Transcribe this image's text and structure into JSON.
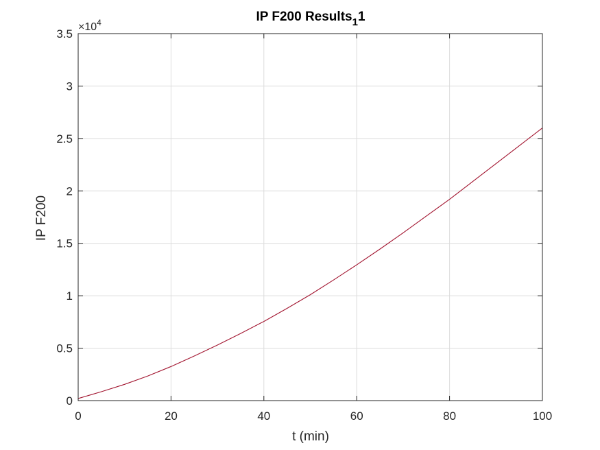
{
  "figure": {
    "title_main": "IP F200 Results",
    "title_subscript": "1",
    "title_suffix": "1"
  },
  "chart_data": {
    "type": "line",
    "title": "IP F200 Results_1 1",
    "xlabel": "t (min)",
    "ylabel": "IP F200",
    "xlim": [
      0,
      100
    ],
    "ylim": [
      0,
      35000
    ],
    "y_exponent_label": "×10",
    "y_exponent_power": "4",
    "grid": true,
    "legend": "none",
    "x_ticks": [
      0,
      20,
      40,
      60,
      80,
      100
    ],
    "x_tick_labels": [
      "0",
      "20",
      "40",
      "60",
      "80",
      "100"
    ],
    "y_ticks": [
      0,
      5000,
      10000,
      15000,
      20000,
      25000,
      30000,
      35000
    ],
    "y_tick_labels": [
      "0",
      "0.5",
      "1",
      "1.5",
      "2",
      "2.5",
      "3",
      "3.5"
    ],
    "line_color": "#A2142F",
    "grid_color": "#dcdcdc",
    "axis_color": "#262626",
    "series": [
      {
        "x": [
          0,
          5,
          10,
          15,
          20,
          25,
          30,
          35,
          40,
          45,
          50,
          55,
          60,
          65,
          70,
          75,
          80,
          85,
          90,
          95,
          100
        ],
        "y": [
          200,
          850,
          1550,
          2350,
          3250,
          4250,
          5300,
          6400,
          7550,
          8800,
          10100,
          11500,
          12950,
          14450,
          16000,
          17600,
          19200,
          20900,
          22600,
          24300,
          26000
        ]
      }
    ]
  }
}
